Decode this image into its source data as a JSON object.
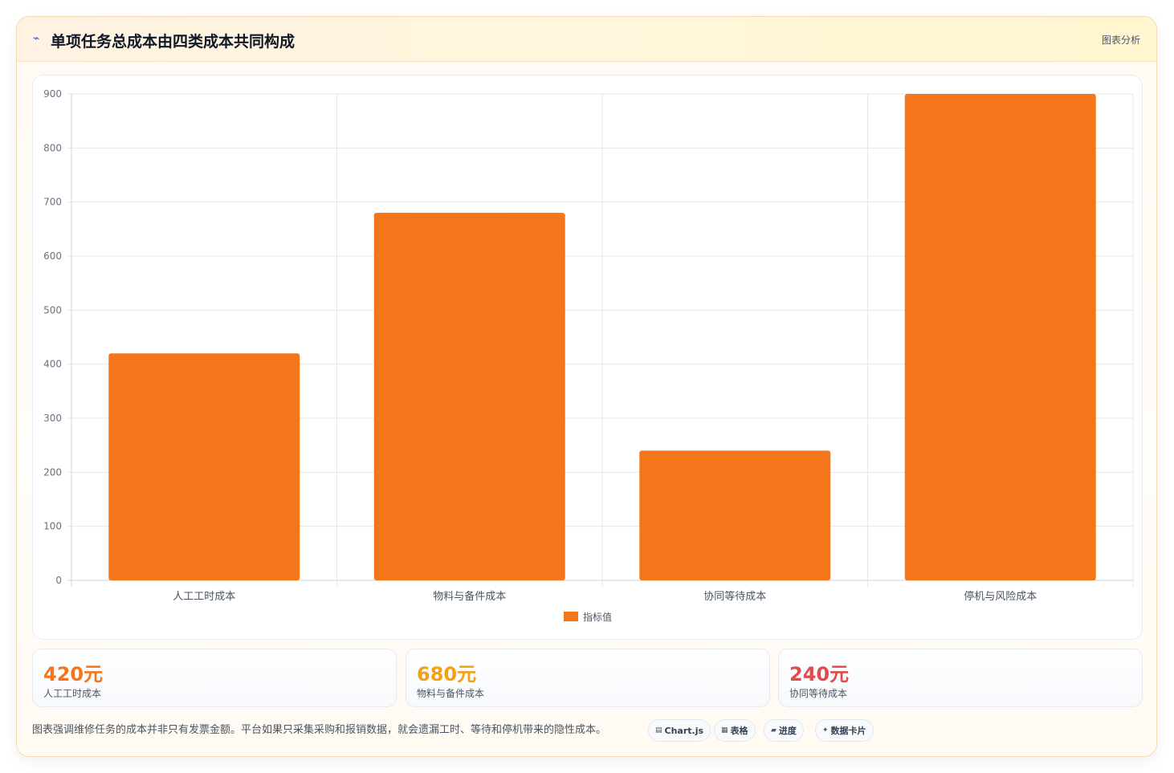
{
  "header": {
    "icon": "chart-trend-icon",
    "title": "单项任务总成本由四类成本共同构成",
    "tag": "图表分析"
  },
  "chart_data": {
    "type": "bar",
    "categories": [
      "人工工时成本",
      "物料与备件成本",
      "协同等待成本",
      "停机与风险成本"
    ],
    "series": [
      {
        "name": "指标值",
        "values": [
          420,
          680,
          240,
          900
        ],
        "color": "#f5761a"
      }
    ],
    "ylim": [
      0,
      900
    ],
    "yticks": [
      0,
      100,
      200,
      300,
      400,
      500,
      600,
      700,
      800,
      900
    ],
    "grid": true,
    "legend": "bottom"
  },
  "stats": [
    {
      "value": "420元",
      "label": "人工工时成本",
      "color": "#f5761a"
    },
    {
      "value": "680元",
      "label": "物料与备件成本",
      "color": "#f2a114"
    },
    {
      "value": "240元",
      "label": "协同等待成本",
      "color": "#e14b4b"
    }
  ],
  "note": "图表强调维修任务的成本并非只有发票金额。平台如果只采集采购和报销数据，就会遗漏工时、等待和停机带来的隐性成本。",
  "chips": [
    {
      "icon": "chart-icon",
      "label": "Chart.js"
    },
    {
      "icon": "table-icon",
      "label": "表格"
    },
    {
      "icon": "progress-icon",
      "label": "进度"
    },
    {
      "icon": "sparkle-icon",
      "label": "数据卡片"
    }
  ]
}
